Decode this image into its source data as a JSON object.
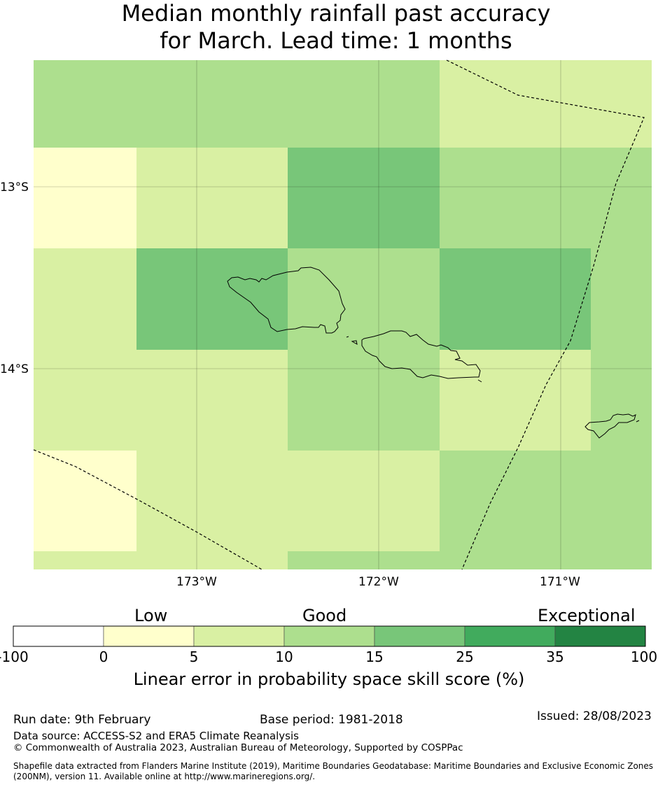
{
  "title": {
    "line1": "Median monthly rainfall past accuracy",
    "line2": "for March. Lead time: 1 months"
  },
  "map": {
    "lon_labels": [
      "173°W",
      "172°W",
      "171°W"
    ],
    "lat_labels": [
      "13°S",
      "14°S"
    ],
    "grid_colors": [
      [
        "#addf8e",
        "#addf8e",
        "#d9f0a3",
        "#78c679"
      ],
      [
        "#ffffcc",
        "#d9f0a3",
        "#78c679",
        "#addf8e",
        "#addf8e"
      ],
      [
        "#d9f0a3",
        "#78c679",
        "#addf8e",
        "#78c679",
        "#addf8e"
      ],
      [
        "#d9f0a3",
        "#d9f0a3",
        "#addf8e",
        "#d9f0a3",
        "#addf8e"
      ],
      [
        "#ffffcc",
        "#d9f0a3",
        "#d9f0a3",
        "#addf8e",
        "#addf8e"
      ],
      [
        "#d9f0a3",
        "#d9f0a3",
        "#addf8e",
        "#addf8e",
        "#addf8e"
      ]
    ]
  },
  "colorbar": {
    "categories": [
      "Low",
      "Good",
      "Exceptional"
    ],
    "ticks": [
      "-100",
      "0",
      "5",
      "10",
      "15",
      "25",
      "35",
      "100"
    ],
    "colors": [
      "#ffffff",
      "#ffffcc",
      "#d9f0a3",
      "#addf8e",
      "#78c679",
      "#41ab5d",
      "#238443"
    ],
    "title": "Linear error in probability space skill score (%)"
  },
  "footer": {
    "run_date": "Run date: 9th February",
    "base_period": "Base period: 1981-2018",
    "issued": "Issued: 28/08/2023",
    "data_source": "Data source: ACCESS-S2 and ERA5 Climate Reanalysis",
    "copyright": "© Commonwealth of Australia 2023, Australian Bureau of Meteorology, Supported by COSPPac",
    "shapefile_line1": "Shapefile data extracted from Flanders Marine Institute (2019), Maritime Boundaries Geodatabase: Maritime Boundaries and Exclusive Economic Zones",
    "shapefile_line2": "(200NM), version 11. Available online at http://www.marineregions.org/."
  }
}
